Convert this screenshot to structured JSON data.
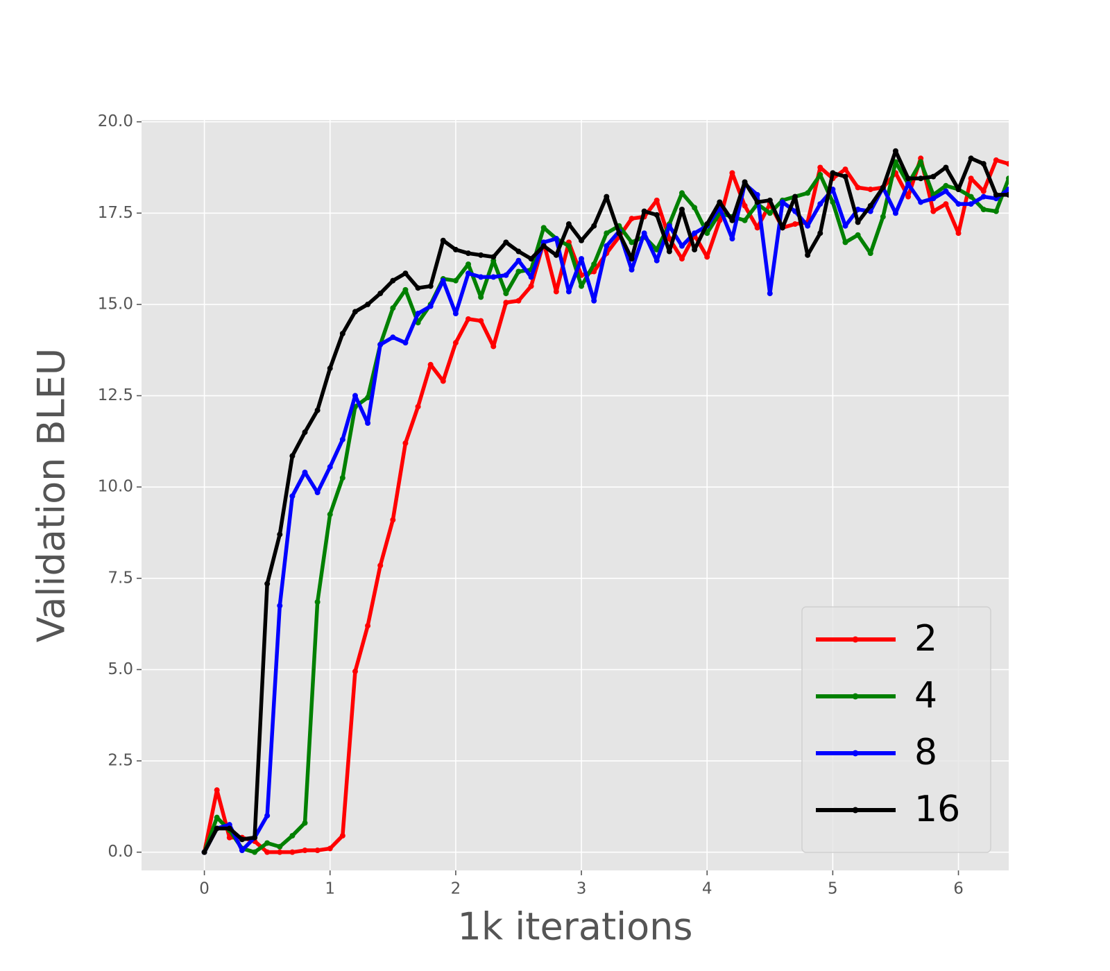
{
  "chart_data": {
    "type": "line",
    "xlabel": "1k iterations",
    "ylabel": "Validation BLEU",
    "x": [
      0,
      0.1,
      0.2,
      0.3,
      0.4,
      0.5,
      0.6,
      0.7,
      0.8,
      0.9,
      1.0,
      1.1,
      1.2,
      1.3,
      1.4,
      1.5,
      1.6,
      1.7,
      1.8,
      1.9,
      2.0,
      2.1,
      2.2,
      2.3,
      2.4,
      2.5,
      2.6,
      2.7,
      2.8,
      2.9,
      3.0,
      3.1,
      3.2,
      3.3,
      3.4,
      3.5,
      3.6,
      3.7,
      3.8,
      3.9,
      4.0,
      4.1,
      4.2,
      4.3,
      4.4,
      4.5,
      4.6,
      4.7,
      4.8,
      4.9,
      5.0,
      5.1,
      5.2,
      5.3,
      5.4,
      5.5,
      5.6,
      5.7,
      5.8,
      5.9,
      6.0,
      6.1,
      6.2,
      6.3,
      6.4
    ],
    "series": [
      {
        "name": "2",
        "color": "#ff0000",
        "values": [
          0,
          1.7,
          0.4,
          0.4,
          0.3,
          0.0,
          0.0,
          0.0,
          0.05,
          0.05,
          0.1,
          0.45,
          4.95,
          6.2,
          7.85,
          9.1,
          11.2,
          12.2,
          13.35,
          12.9,
          13.95,
          14.6,
          14.55,
          13.85,
          15.05,
          15.1,
          15.5,
          16.7,
          15.35,
          16.7,
          15.8,
          15.9,
          16.4,
          16.85,
          17.35,
          17.4,
          17.85,
          16.8,
          16.25,
          16.9,
          16.3,
          17.3,
          18.6,
          17.7,
          17.1,
          17.75,
          17.1,
          17.2,
          17.25,
          18.75,
          18.45,
          18.7,
          18.2,
          18.15,
          18.2,
          18.6,
          17.95,
          19.0,
          17.55,
          17.75,
          16.95,
          18.45,
          18.1,
          18.95,
          18.85
        ]
      },
      {
        "name": "4",
        "color": "#008000",
        "values": [
          0,
          0.95,
          0.6,
          0.1,
          0.0,
          0.25,
          0.15,
          0.45,
          0.8,
          6.85,
          9.25,
          10.25,
          12.2,
          12.45,
          13.9,
          14.9,
          15.4,
          14.5,
          15.0,
          15.7,
          15.65,
          16.1,
          15.2,
          16.2,
          15.3,
          15.9,
          15.95,
          17.1,
          16.8,
          16.6,
          15.5,
          16.1,
          16.95,
          17.15,
          16.7,
          16.85,
          16.5,
          17.2,
          18.05,
          17.65,
          16.95,
          17.5,
          17.4,
          17.3,
          17.75,
          17.5,
          17.85,
          17.95,
          18.05,
          18.55,
          17.8,
          16.7,
          16.9,
          16.4,
          17.4,
          18.9,
          18.3,
          18.9,
          18.0,
          18.25,
          18.15,
          17.95,
          17.6,
          17.55,
          18.45
        ]
      },
      {
        "name": "8",
        "color": "#0000ff",
        "values": [
          0,
          0.65,
          0.75,
          0.05,
          0.4,
          1.0,
          6.75,
          9.75,
          10.4,
          9.85,
          10.55,
          11.3,
          12.5,
          11.75,
          13.9,
          14.1,
          13.95,
          14.75,
          14.95,
          15.65,
          14.75,
          15.85,
          15.75,
          15.75,
          15.8,
          16.2,
          15.75,
          16.7,
          16.8,
          15.35,
          16.25,
          15.1,
          16.6,
          17.0,
          15.95,
          16.95,
          16.2,
          17.15,
          16.6,
          16.95,
          17.15,
          17.65,
          16.8,
          18.3,
          18.0,
          15.3,
          17.8,
          17.55,
          17.15,
          17.75,
          18.15,
          17.15,
          17.6,
          17.55,
          18.2,
          17.5,
          18.3,
          17.8,
          17.9,
          18.1,
          17.75,
          17.75,
          17.95,
          17.9,
          18.15
        ]
      },
      {
        "name": "16",
        "color": "#000000",
        "values": [
          0,
          0.65,
          0.65,
          0.35,
          0.4,
          7.35,
          8.7,
          10.85,
          11.5,
          12.1,
          13.25,
          14.2,
          14.8,
          15.0,
          15.3,
          15.65,
          15.85,
          15.45,
          15.5,
          16.75,
          16.5,
          16.4,
          16.35,
          16.3,
          16.7,
          16.45,
          16.25,
          16.6,
          16.35,
          17.2,
          16.75,
          17.15,
          17.95,
          16.95,
          16.25,
          17.55,
          17.45,
          16.45,
          17.6,
          16.5,
          17.2,
          17.8,
          17.3,
          18.35,
          17.8,
          17.85,
          17.1,
          17.95,
          16.35,
          16.95,
          18.6,
          18.5,
          17.25,
          17.7,
          18.2,
          19.2,
          18.45,
          18.45,
          18.5,
          18.75,
          18.15,
          19.0,
          18.85,
          18.0,
          18.0
        ]
      }
    ],
    "xlim": [
      -0.5,
      6.4
    ],
    "ylim": [
      -0.5,
      20.05
    ],
    "xticks": [
      0,
      1,
      2,
      3,
      4,
      5,
      6
    ],
    "yticks": [
      {
        "value": 0,
        "label": "0.0"
      },
      2.5,
      {
        "value": 5,
        "label": "5.0"
      },
      7.5,
      {
        "value": 10,
        "label": "10.0"
      },
      12.5,
      {
        "value": 15,
        "label": "15.0"
      },
      17.5,
      {
        "value": 20,
        "label": "20.0"
      }
    ],
    "grid": true,
    "legend": "lower right"
  }
}
